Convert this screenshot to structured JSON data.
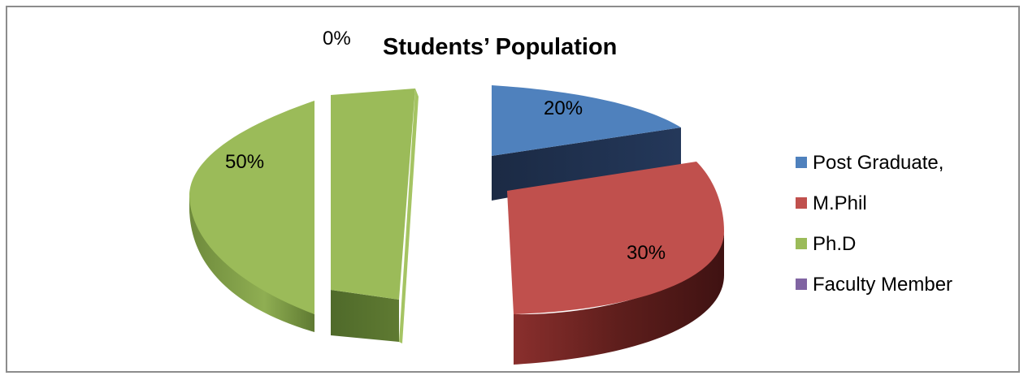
{
  "chart_data": {
    "type": "pie",
    "style": "3d-exploded",
    "title": "Students’ Population",
    "legend_position": "right",
    "categories": [
      "Post Graduate,",
      "M.Phil",
      "Ph.D",
      "Faculty Member"
    ],
    "values": [
      20,
      30,
      50,
      0
    ],
    "data_labels": [
      "20%",
      "30%",
      "50%",
      "0%"
    ],
    "colors": [
      "#4f81bd",
      "#c0504d",
      "#9bbb59",
      "#8064a2"
    ]
  }
}
